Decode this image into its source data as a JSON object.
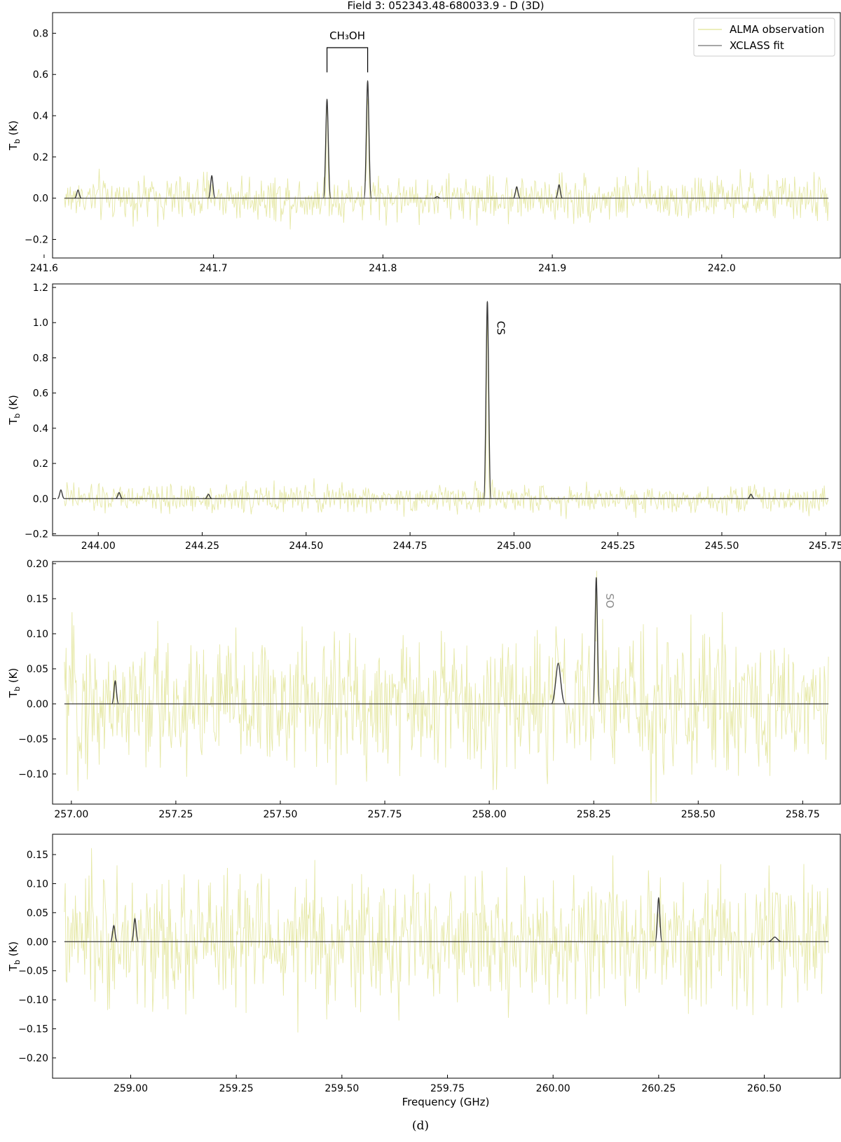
{
  "figure": {
    "title": "Field 3: 052343.48-680033.9 - D (3D)",
    "caption": "(d)",
    "xlabel": "Frequency (GHz)",
    "legend": {
      "placement": "top-right",
      "entries": [
        "ALMA observation",
        "XCLASS fit"
      ]
    },
    "colors": {
      "observation": "#e6e8a6",
      "fit": "#3a3a3a",
      "frame": "#000000",
      "so_label": "#8a8a8a"
    }
  },
  "chart_data": [
    {
      "type": "line",
      "ylabel": "T_b (K)",
      "xlim": [
        241.605,
        242.07
      ],
      "ylim": [
        -0.29,
        0.9
      ],
      "xticks": [
        "241.6",
        "241.7",
        "241.8",
        "241.9",
        "242.0"
      ],
      "yticks": [
        "−0.2",
        "0.0",
        "0.2",
        "0.4",
        "0.6",
        "0.8"
      ],
      "noise_rms": 0.055,
      "fit_peaks": [
        {
          "x": 241.62,
          "y": 0.04
        },
        {
          "x": 241.699,
          "y": 0.11
        },
        {
          "x": 241.767,
          "y": 0.48
        },
        {
          "x": 241.791,
          "y": 0.57
        },
        {
          "x": 241.832,
          "y": 0.008
        },
        {
          "x": 241.879,
          "y": 0.055
        },
        {
          "x": 241.904,
          "y": 0.065
        }
      ],
      "annotations": [
        {
          "text": "CH₃OH",
          "kind": "bracket",
          "x1": 241.767,
          "x2": 241.791,
          "y_top": 0.73,
          "y_bottom": 0.61
        }
      ]
    },
    {
      "type": "line",
      "ylabel": "T_b (K)",
      "xlim": [
        243.89,
        245.785
      ],
      "ylim": [
        -0.21,
        1.22
      ],
      "xticks": [
        "244.00",
        "244.25",
        "244.50",
        "244.75",
        "245.00",
        "245.25",
        "245.50",
        "245.75"
      ],
      "yticks": [
        "−0.2",
        "0.0",
        "0.2",
        "0.4",
        "0.6",
        "0.8",
        "1.0",
        "1.2"
      ],
      "noise_rms": 0.04,
      "fit_peaks": [
        {
          "x": 243.91,
          "y": 0.05
        },
        {
          "x": 244.05,
          "y": 0.035
        },
        {
          "x": 244.265,
          "y": 0.025
        },
        {
          "x": 244.936,
          "y": 1.12
        },
        {
          "x": 245.57,
          "y": 0.025
        }
      ],
      "annotations": [
        {
          "text": "CS",
          "kind": "vertical",
          "x": 244.936,
          "y": 0.97
        }
      ]
    },
    {
      "type": "line",
      "ylabel": "T_b (K)",
      "xlim": [
        256.955,
        258.84
      ],
      "ylim": [
        -0.143,
        0.203
      ],
      "xticks": [
        "257.00",
        "257.25",
        "257.50",
        "257.75",
        "258.00",
        "258.25",
        "258.50",
        "258.75"
      ],
      "yticks": [
        "−0.10",
        "−0.05",
        "0.00",
        "0.05",
        "0.10",
        "0.15",
        "0.20"
      ],
      "noise_rms": 0.05,
      "fit_peaks": [
        {
          "x": 257.105,
          "y": 0.033
        },
        {
          "x": 258.165,
          "y": 0.058
        },
        {
          "x": 258.256,
          "y": 0.18
        }
      ],
      "annotations": [
        {
          "text": "SO",
          "kind": "vertical-gray",
          "x": 258.256,
          "y": 0.147
        }
      ]
    },
    {
      "type": "line",
      "ylabel": "T_b (K)",
      "xlim": [
        258.815,
        260.68
      ],
      "ylim": [
        -0.235,
        0.185
      ],
      "xticks": [
        "259.00",
        "259.25",
        "259.50",
        "259.75",
        "260.00",
        "260.25",
        "260.50"
      ],
      "yticks": [
        "−0.20",
        "−0.15",
        "−0.10",
        "−0.05",
        "0.00",
        "0.05",
        "0.10",
        "0.15"
      ],
      "noise_rms": 0.055,
      "fit_peaks": [
        {
          "x": 258.96,
          "y": 0.028
        },
        {
          "x": 259.01,
          "y": 0.04
        },
        {
          "x": 260.25,
          "y": 0.076
        },
        {
          "x": 260.525,
          "y": 0.008
        }
      ],
      "annotations": [],
      "show_xlabel": true
    }
  ]
}
